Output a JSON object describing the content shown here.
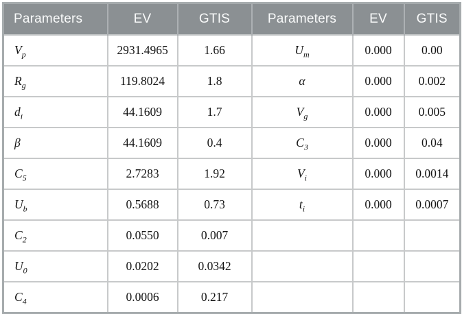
{
  "table": {
    "headers": [
      "Parameters",
      "EV",
      "GTIS",
      "Parameters",
      "EV",
      "GTIS"
    ],
    "rows": [
      {
        "p1": {
          "base": "V",
          "sub": "p"
        },
        "ev1": "2931.4965",
        "gtis1": "1.66",
        "p2": {
          "base": "U",
          "sub": "m"
        },
        "ev2": "0.000",
        "gtis2": "0.00"
      },
      {
        "p1": {
          "base": "R",
          "sub": "g"
        },
        "ev1": "119.8024",
        "gtis1": "1.8",
        "p2": {
          "base": "α",
          "sub": ""
        },
        "ev2": "0.000",
        "gtis2": "0.002"
      },
      {
        "p1": {
          "base": "d",
          "sub": "i"
        },
        "ev1": "44.1609",
        "gtis1": "1.7",
        "p2": {
          "base": "V",
          "sub": "g"
        },
        "ev2": "0.000",
        "gtis2": "0.005"
      },
      {
        "p1": {
          "base": "β",
          "sub": ""
        },
        "ev1": "44.1609",
        "gtis1": "0.4",
        "p2": {
          "base": "C",
          "sub": "3"
        },
        "ev2": "0.000",
        "gtis2": "0.04"
      },
      {
        "p1": {
          "base": "C",
          "sub": "5"
        },
        "ev1": "2.7283",
        "gtis1": "1.92",
        "p2": {
          "base": "V",
          "sub": "i"
        },
        "ev2": "0.000",
        "gtis2": "0.0014"
      },
      {
        "p1": {
          "base": "U",
          "sub": "b"
        },
        "ev1": "0.5688",
        "gtis1": "0.73",
        "p2": {
          "base": "t",
          "sub": "i"
        },
        "ev2": "0.000",
        "gtis2": "0.0007"
      },
      {
        "p1": {
          "base": "C",
          "sub": "2"
        },
        "ev1": "0.0550",
        "gtis1": "0.007",
        "p2": {
          "base": "",
          "sub": ""
        },
        "ev2": "",
        "gtis2": ""
      },
      {
        "p1": {
          "base": "U",
          "sub": "0"
        },
        "ev1": "0.0202",
        "gtis1": "0.0342",
        "p2": {
          "base": "",
          "sub": ""
        },
        "ev2": "",
        "gtis2": ""
      },
      {
        "p1": {
          "base": "C",
          "sub": "4"
        },
        "ev1": "0.0006",
        "gtis1": "0.217",
        "p2": {
          "base": "",
          "sub": ""
        },
        "ev2": "",
        "gtis2": ""
      }
    ],
    "colors": {
      "header_bg": "#8b9093",
      "header_text": "#fafbfb",
      "grid": "#c7c9ca",
      "outer_border": "#a6abad",
      "cell_text": "#151515"
    }
  }
}
